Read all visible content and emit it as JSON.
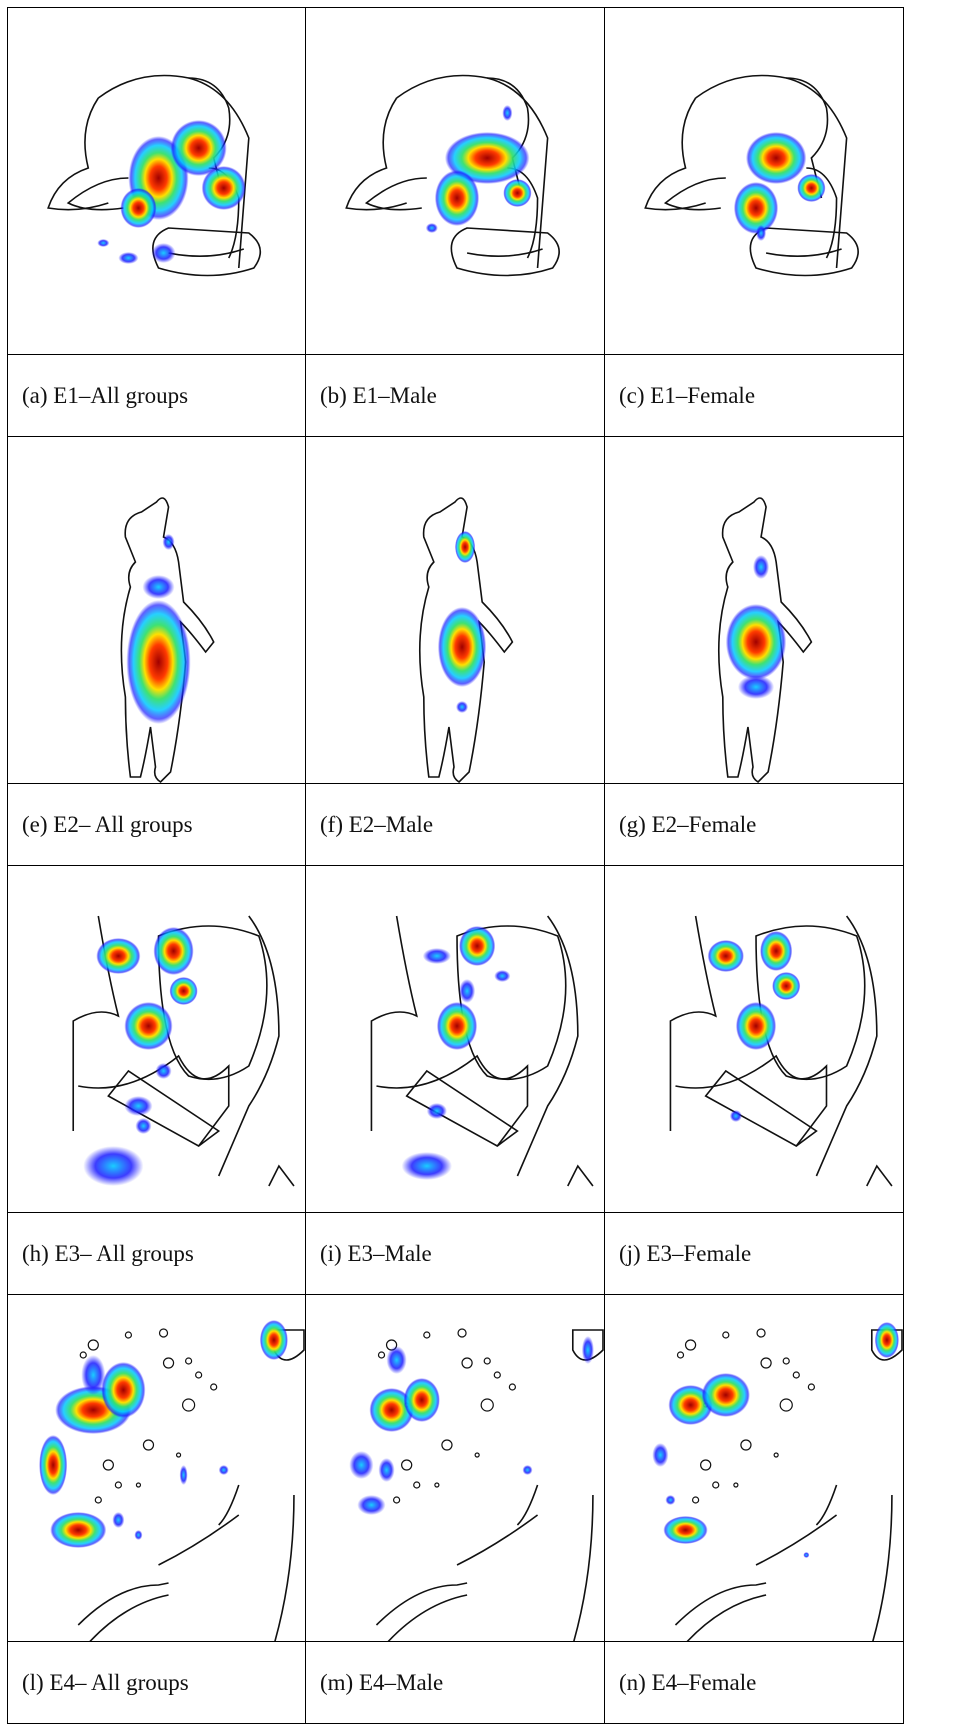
{
  "figure": {
    "rows": [
      {
        "panels": [
          {
            "caption": "(a) E1–All groups",
            "scene": "woman-dining",
            "variant": "all"
          },
          {
            "caption": "(b) E1–Male",
            "scene": "woman-dining",
            "variant": "male"
          },
          {
            "caption": "(c) E1–Female",
            "scene": "woman-dining",
            "variant": "female"
          }
        ]
      },
      {
        "panels": [
          {
            "caption": "(e) E2– All groups",
            "scene": "standing-figure",
            "variant": "all"
          },
          {
            "caption": "(f) E2–Male",
            "scene": "standing-figure",
            "variant": "male"
          },
          {
            "caption": "(g) E2–Female",
            "scene": "standing-figure",
            "variant": "female"
          }
        ]
      },
      {
        "panels": [
          {
            "caption": "(h) E3– All groups",
            "scene": "face-sash",
            "variant": "all"
          },
          {
            "caption": "(i) E3–Male",
            "scene": "face-sash",
            "variant": "male"
          },
          {
            "caption": "(j) E3–Female",
            "scene": "face-sash",
            "variant": "female"
          }
        ]
      },
      {
        "panels": [
          {
            "caption": "(l) E4– All groups",
            "scene": "bubbles",
            "variant": "all"
          },
          {
            "caption": "(m) E4–Male",
            "scene": "bubbles",
            "variant": "male"
          },
          {
            "caption": "(n) E4–Female",
            "scene": "bubbles",
            "variant": "female"
          }
        ]
      }
    ],
    "heatmap_colors": [
      "#1a1aff",
      "#00c8ff",
      "#35e06a",
      "#ffe000",
      "#ff3a00",
      "#a00000"
    ]
  }
}
